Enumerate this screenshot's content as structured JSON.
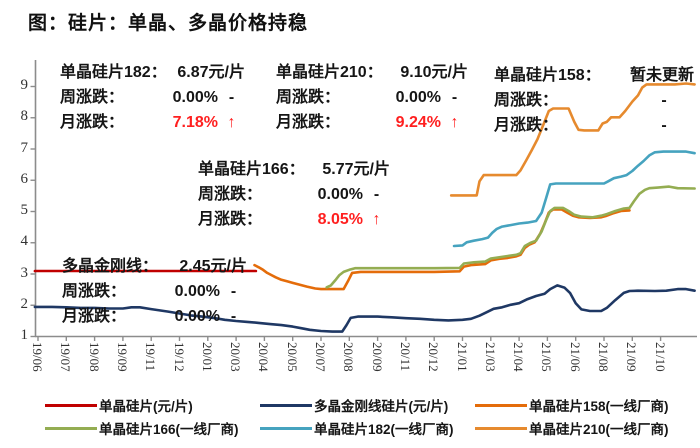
{
  "title": "图：硅片：单晶、多晶价格持稳",
  "colors": {
    "red": "#c00000",
    "navy": "#1f3864",
    "orange158": "#e46c0a",
    "green166": "#94ad52",
    "teal182": "#46a3bf",
    "orange210": "#e68a2e",
    "accent_red": "#ff1f1f",
    "axis": "#8c8c8c",
    "text": "#151515"
  },
  "annotations": {
    "a182": {
      "name": "单晶硅片182：",
      "value": "6.87元/片",
      "week_label": "周涨跌：",
      "week_value": "0.00%",
      "week_mark": "-",
      "month_label": "月涨跌：",
      "month_value": "7.18%",
      "month_mark": "↑"
    },
    "a210": {
      "name": "单晶硅片210：",
      "value": "9.10元/片",
      "week_label": "周涨跌：",
      "week_value": "0.00%",
      "week_mark": "-",
      "month_label": "月涨跌：",
      "month_value": "9.24%",
      "month_mark": "↑"
    },
    "a158": {
      "name": "单晶硅片158：",
      "value": "暂未更新",
      "week_label": "周涨跌：",
      "week_value": "",
      "week_mark": "-",
      "month_label": "月涨跌：",
      "month_value": "",
      "month_mark": "-"
    },
    "a166": {
      "name": "单晶硅片166：",
      "value": "5.77元/片",
      "week_label": "周涨跌：",
      "week_value": "0.00%",
      "week_mark": "-",
      "month_label": "月涨跌：",
      "month_value": "8.05%",
      "month_mark": "↑"
    },
    "poly": {
      "name": "多晶金刚线：",
      "value": "2.45元/片",
      "week_label": "周涨跌：",
      "week_value": "0.00%",
      "week_mark": "-",
      "month_label": "月涨跌：",
      "month_value": "0.00%",
      "month_mark": "-"
    }
  },
  "chart_data": {
    "type": "line",
    "title": "图：硅片：单晶、多晶价格持稳",
    "xlabel": "",
    "ylabel": "",
    "ylim": [
      1,
      9
    ],
    "y_ticks": [
      1,
      2,
      3,
      4,
      5,
      6,
      7,
      8,
      9
    ],
    "grid": false,
    "legend_position": "bottom",
    "x_labels": [
      "19/06",
      "19/07",
      "19/08",
      "19/09",
      "19/11",
      "19/12",
      "20/01",
      "20/03",
      "20/04",
      "20/05",
      "20/07",
      "20/08",
      "20/09",
      "20/11",
      "20/12",
      "21/01",
      "21/03",
      "21/04",
      "21/05",
      "21/06",
      "21/08",
      "21/09",
      "21/10"
    ],
    "series": [
      {
        "name": "单晶硅片(元/片)",
        "color": "#c00000",
        "unit": "元/片",
        "latest": null,
        "points": [
          [
            -0.11,
            3.08
          ],
          [
            7.7,
            3.08
          ]
        ]
      },
      {
        "name": "多晶金刚线硅片(元/片)",
        "color": "#1f3864",
        "unit": "元/片",
        "latest": 2.45,
        "points": [
          [
            -0.11,
            1.93
          ],
          [
            0.5,
            1.93
          ],
          [
            1,
            1.92
          ],
          [
            1.5,
            1.9
          ],
          [
            2,
            1.9
          ],
          [
            2.5,
            1.88
          ],
          [
            3,
            1.88
          ],
          [
            3.3,
            1.92
          ],
          [
            3.6,
            1.92
          ],
          [
            4,
            1.86
          ],
          [
            4.3,
            1.82
          ],
          [
            4.6,
            1.78
          ],
          [
            5,
            1.72
          ],
          [
            5.4,
            1.66
          ],
          [
            5.8,
            1.62
          ],
          [
            6.2,
            1.58
          ],
          [
            6.6,
            1.52
          ],
          [
            7,
            1.48
          ],
          [
            7.4,
            1.45
          ],
          [
            7.8,
            1.42
          ],
          [
            8.2,
            1.38
          ],
          [
            8.6,
            1.35
          ],
          [
            9,
            1.3
          ],
          [
            9.3,
            1.25
          ],
          [
            9.6,
            1.2
          ],
          [
            10,
            1.16
          ],
          [
            10.4,
            1.14
          ],
          [
            10.75,
            1.14
          ],
          [
            10.9,
            1.35
          ],
          [
            11.05,
            1.58
          ],
          [
            11.3,
            1.62
          ],
          [
            12,
            1.62
          ],
          [
            12.5,
            1.6
          ],
          [
            13,
            1.57
          ],
          [
            13.5,
            1.55
          ],
          [
            14,
            1.52
          ],
          [
            14.5,
            1.5
          ],
          [
            15,
            1.52
          ],
          [
            15.3,
            1.55
          ],
          [
            15.6,
            1.65
          ],
          [
            15.9,
            1.78
          ],
          [
            16.1,
            1.87
          ],
          [
            16.4,
            1.92
          ],
          [
            16.7,
            2.0
          ],
          [
            17,
            2.05
          ],
          [
            17.3,
            2.18
          ],
          [
            17.6,
            2.28
          ],
          [
            17.9,
            2.35
          ],
          [
            18.1,
            2.5
          ],
          [
            18.35,
            2.62
          ],
          [
            18.6,
            2.55
          ],
          [
            18.8,
            2.38
          ],
          [
            19,
            2.05
          ],
          [
            19.2,
            1.85
          ],
          [
            19.5,
            1.8
          ],
          [
            19.9,
            1.8
          ],
          [
            20.1,
            1.9
          ],
          [
            20.4,
            2.15
          ],
          [
            20.7,
            2.38
          ],
          [
            20.9,
            2.44
          ],
          [
            21.2,
            2.45
          ],
          [
            21.8,
            2.44
          ],
          [
            22.2,
            2.45
          ],
          [
            22.6,
            2.5
          ],
          [
            22.9,
            2.5
          ],
          [
            23.2,
            2.45
          ]
        ]
      },
      {
        "name": "单晶硅片158(一线厂商)",
        "color": "#e46c0a",
        "unit": "元/片",
        "latest": null,
        "points": [
          [
            7.65,
            3.27
          ],
          [
            7.8,
            3.2
          ],
          [
            7.95,
            3.12
          ],
          [
            8.1,
            3.02
          ],
          [
            8.25,
            2.95
          ],
          [
            8.4,
            2.88
          ],
          [
            8.6,
            2.8
          ],
          [
            8.8,
            2.75
          ],
          [
            9,
            2.7
          ],
          [
            9.2,
            2.65
          ],
          [
            9.5,
            2.58
          ],
          [
            9.8,
            2.52
          ],
          [
            10,
            2.5
          ],
          [
            10.8,
            2.5
          ],
          [
            10.95,
            2.75
          ],
          [
            11.1,
            3.02
          ],
          [
            11.4,
            3.05
          ],
          [
            12,
            3.05
          ],
          [
            13,
            3.05
          ],
          [
            14,
            3.05
          ],
          [
            14.9,
            3.07
          ],
          [
            15.05,
            3.22
          ],
          [
            15.3,
            3.27
          ],
          [
            15.8,
            3.3
          ],
          [
            16,
            3.42
          ],
          [
            16.3,
            3.47
          ],
          [
            16.6,
            3.5
          ],
          [
            16.9,
            3.55
          ],
          [
            17.05,
            3.6
          ],
          [
            17.2,
            3.82
          ],
          [
            17.35,
            3.92
          ],
          [
            17.55,
            4.0
          ],
          [
            17.75,
            4.28
          ],
          [
            17.9,
            4.6
          ],
          [
            18.05,
            4.95
          ],
          [
            18.2,
            5.05
          ],
          [
            18.5,
            5.05
          ],
          [
            18.7,
            4.95
          ],
          [
            18.9,
            4.85
          ],
          [
            19.1,
            4.8
          ],
          [
            19.5,
            4.78
          ],
          [
            19.9,
            4.8
          ],
          [
            20.1,
            4.85
          ],
          [
            20.3,
            4.92
          ],
          [
            20.6,
            5.0
          ],
          [
            20.9,
            5.02
          ]
        ]
      },
      {
        "name": "单晶硅片166(一线厂商)",
        "color": "#94ad52",
        "unit": "元/片",
        "latest": 5.77,
        "points": [
          [
            10.2,
            2.56
          ],
          [
            10.35,
            2.62
          ],
          [
            10.5,
            2.78
          ],
          [
            10.65,
            2.95
          ],
          [
            10.8,
            3.05
          ],
          [
            11,
            3.12
          ],
          [
            11.2,
            3.17
          ],
          [
            12,
            3.17
          ],
          [
            13,
            3.17
          ],
          [
            14,
            3.17
          ],
          [
            14.9,
            3.18
          ],
          [
            15.05,
            3.32
          ],
          [
            15.4,
            3.36
          ],
          [
            15.8,
            3.38
          ],
          [
            16,
            3.48
          ],
          [
            16.3,
            3.52
          ],
          [
            16.6,
            3.56
          ],
          [
            16.9,
            3.6
          ],
          [
            17.05,
            3.65
          ],
          [
            17.2,
            3.88
          ],
          [
            17.4,
            3.98
          ],
          [
            17.6,
            4.05
          ],
          [
            17.8,
            4.35
          ],
          [
            17.95,
            4.7
          ],
          [
            18.1,
            5.0
          ],
          [
            18.25,
            5.1
          ],
          [
            18.55,
            5.1
          ],
          [
            18.75,
            5.0
          ],
          [
            18.95,
            4.88
          ],
          [
            19.2,
            4.82
          ],
          [
            19.6,
            4.8
          ],
          [
            19.9,
            4.85
          ],
          [
            20.1,
            4.9
          ],
          [
            20.4,
            5.0
          ],
          [
            20.7,
            5.08
          ],
          [
            20.9,
            5.1
          ],
          [
            21.05,
            5.3
          ],
          [
            21.25,
            5.55
          ],
          [
            21.45,
            5.68
          ],
          [
            21.6,
            5.73
          ],
          [
            21.9,
            5.75
          ],
          [
            22.3,
            5.78
          ],
          [
            22.6,
            5.73
          ],
          [
            23.2,
            5.72
          ]
        ]
      },
      {
        "name": "单晶硅片182(一线厂商)",
        "color": "#46a3bf",
        "unit": "元/片",
        "latest": 6.87,
        "points": [
          [
            14.7,
            3.88
          ],
          [
            15,
            3.9
          ],
          [
            15.15,
            4.0
          ],
          [
            15.4,
            4.05
          ],
          [
            15.7,
            4.1
          ],
          [
            15.9,
            4.15
          ],
          [
            16.05,
            4.3
          ],
          [
            16.2,
            4.42
          ],
          [
            16.4,
            4.5
          ],
          [
            16.7,
            4.55
          ],
          [
            17,
            4.6
          ],
          [
            17.3,
            4.63
          ],
          [
            17.6,
            4.68
          ],
          [
            17.8,
            4.95
          ],
          [
            17.95,
            5.4
          ],
          [
            18.1,
            5.85
          ],
          [
            18.3,
            5.88
          ],
          [
            19,
            5.88
          ],
          [
            19.5,
            5.88
          ],
          [
            20,
            5.88
          ],
          [
            20.15,
            5.95
          ],
          [
            20.35,
            6.05
          ],
          [
            20.6,
            6.1
          ],
          [
            20.8,
            6.15
          ],
          [
            21,
            6.28
          ],
          [
            21.2,
            6.45
          ],
          [
            21.4,
            6.6
          ],
          [
            21.6,
            6.78
          ],
          [
            21.8,
            6.88
          ],
          [
            22.1,
            6.9
          ],
          [
            22.5,
            6.9
          ],
          [
            22.9,
            6.9
          ],
          [
            23.2,
            6.85
          ]
        ]
      },
      {
        "name": "单晶硅片210(一线厂商)",
        "color": "#e68a2e",
        "unit": "元/片",
        "latest": 9.1,
        "points": [
          [
            14.6,
            5.5
          ],
          [
            15.5,
            5.5
          ],
          [
            15.6,
            5.95
          ],
          [
            15.75,
            6.15
          ],
          [
            16.5,
            6.15
          ],
          [
            16.9,
            6.15
          ],
          [
            17.05,
            6.3
          ],
          [
            17.25,
            6.62
          ],
          [
            17.45,
            6.95
          ],
          [
            17.65,
            7.3
          ],
          [
            17.85,
            7.75
          ],
          [
            18.05,
            8.2
          ],
          [
            18.2,
            8.28
          ],
          [
            18.75,
            8.28
          ],
          [
            18.95,
            7.85
          ],
          [
            19.1,
            7.6
          ],
          [
            19.3,
            7.58
          ],
          [
            19.8,
            7.58
          ],
          [
            19.95,
            7.8
          ],
          [
            20.1,
            7.85
          ],
          [
            20.25,
            8.0
          ],
          [
            20.55,
            8.0
          ],
          [
            20.75,
            8.2
          ],
          [
            21,
            8.5
          ],
          [
            21.2,
            8.7
          ],
          [
            21.35,
            8.95
          ],
          [
            21.5,
            9.05
          ],
          [
            22,
            9.05
          ],
          [
            22.5,
            9.05
          ],
          [
            22.9,
            9.08
          ],
          [
            23.2,
            9.05
          ]
        ]
      }
    ],
    "legend": [
      {
        "label": "单晶硅片(元/片)",
        "color": "#c00000"
      },
      {
        "label": "多晶金刚线硅片(元/片)",
        "color": "#1f3864"
      },
      {
        "label": "单晶硅片158(一线厂商)",
        "color": "#e46c0a"
      },
      {
        "label": "单晶硅片166(一线厂商)",
        "color": "#94ad52"
      },
      {
        "label": "单晶硅片182(一线厂商)",
        "color": "#46a3bf"
      },
      {
        "label": "单晶硅片210(一线厂商)",
        "color": "#e68a2e"
      }
    ]
  }
}
